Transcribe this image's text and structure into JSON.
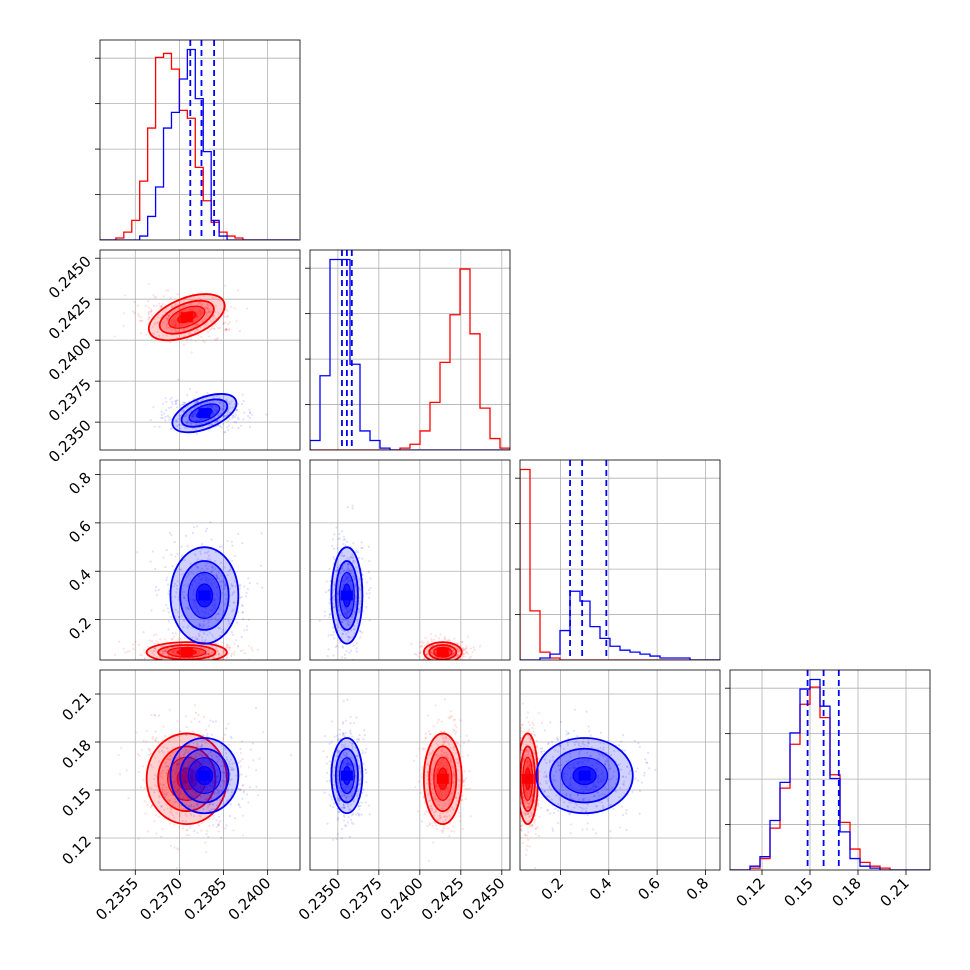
{
  "chart_data": {
    "type": "corner",
    "parameters": [
      "",
      "",
      "",
      ""
    ],
    "grid": true,
    "series": [
      {
        "name": "",
        "color": "#ff0000"
      },
      {
        "name": "",
        "color": "#0000ff"
      }
    ],
    "ranges": [
      [
        0.2343,
        0.2411
      ],
      [
        0.2333,
        0.2455
      ],
      [
        0.033,
        0.86
      ],
      [
        0.1,
        0.225
      ]
    ],
    "ticks": [
      [
        "0.2355",
        "0.2370",
        "0.2385",
        "0.2400"
      ],
      [
        "0.2350",
        "0.2375",
        "0.2400",
        "0.2425",
        "0.2450"
      ],
      [
        "0.2",
        "0.4",
        "0.6",
        "0.8"
      ],
      [
        "0.12",
        "0.15",
        "0.18",
        "0.21"
      ]
    ],
    "tick_values": [
      [
        0.2355,
        0.237,
        0.2385,
        0.24
      ],
      [
        0.235,
        0.2375,
        0.24,
        0.2425,
        0.245
      ],
      [
        0.2,
        0.4,
        0.6,
        0.8
      ],
      [
        0.12,
        0.15,
        0.18,
        0.21
      ]
    ],
    "histograms": [
      {
        "edges": [
          0.2343,
          0.23457,
          0.23484,
          0.23511,
          0.23538,
          0.23565,
          0.23592,
          0.23619,
          0.23646,
          0.23673,
          0.237,
          0.23727,
          0.23754,
          0.23781,
          0.23808,
          0.23835,
          0.23862,
          0.23889,
          0.23916,
          0.23943,
          0.2397,
          0.23997,
          0.24024,
          0.24051,
          0.24078,
          0.24105
        ],
        "red": [
          0,
          0,
          1,
          4,
          10,
          30,
          57,
          93,
          95,
          87,
          66,
          62,
          37,
          20,
          9,
          4,
          2,
          1,
          0,
          0,
          0,
          0,
          0,
          0,
          0
        ],
        "blue": [
          0,
          0,
          0,
          0,
          0,
          2,
          12,
          27,
          57,
          65,
          82,
          97,
          72,
          45,
          10,
          2,
          0,
          0,
          0,
          0,
          0,
          0,
          0,
          0,
          0
        ],
        "quantiles": [
          0.23737,
          0.23775,
          0.23818
        ]
      },
      {
        "edges": [
          0.2333,
          0.23391,
          0.23452,
          0.23513,
          0.23574,
          0.23635,
          0.23696,
          0.23757,
          0.23818,
          0.23879,
          0.2394,
          0.24001,
          0.24062,
          0.24123,
          0.24184,
          0.24245,
          0.24306,
          0.24367,
          0.24428,
          0.24489,
          0.2455
        ],
        "red": [
          0,
          0,
          0,
          0,
          0,
          0,
          0,
          0,
          0,
          1,
          3,
          10,
          25,
          46,
          71,
          95,
          61,
          22,
          6,
          1
        ],
        "blue": [
          5,
          39,
          100,
          100,
          45,
          10,
          5,
          1,
          0,
          0,
          0,
          0,
          0,
          0,
          0,
          0,
          0,
          0,
          0,
          0
        ],
        "quantiles": [
          0.23525,
          0.23555,
          0.23585
        ]
      },
      {
        "edges": [
          0.033,
          0.07435,
          0.1157,
          0.15705,
          0.1984,
          0.23975,
          0.2811,
          0.32245,
          0.3638,
          0.40515,
          0.4465,
          0.48785,
          0.5292,
          0.57055,
          0.6119,
          0.65325,
          0.6946,
          0.73595,
          0.7773,
          0.81865,
          0.86
        ],
        "red": [
          97,
          25,
          4,
          1,
          0,
          0,
          0,
          0,
          0,
          0,
          0,
          0,
          0,
          0,
          0,
          0,
          0,
          0,
          0,
          0
        ],
        "blue": [
          0,
          0,
          1,
          3,
          15,
          35,
          30,
          17,
          11,
          7,
          5,
          4,
          3,
          2,
          1,
          1,
          1,
          0,
          0,
          0
        ],
        "quantiles": [
          0.24,
          0.29,
          0.39
        ]
      },
      {
        "edges": [
          0.1,
          0.10625,
          0.1125,
          0.11875,
          0.125,
          0.13125,
          0.1375,
          0.14375,
          0.15,
          0.15625,
          0.1625,
          0.16875,
          0.175,
          0.18125,
          0.1875,
          0.19375,
          0.2,
          0.20625,
          0.2125,
          0.21875,
          0.225
        ],
        "red": [
          0,
          0,
          1,
          6,
          22,
          43,
          66,
          87,
          96,
          80,
          50,
          25,
          11,
          4,
          2,
          1,
          0,
          0,
          0,
          0
        ],
        "blue": [
          0,
          0,
          2,
          7,
          26,
          46,
          72,
          95,
          100,
          86,
          48,
          20,
          6,
          2,
          1,
          0,
          0,
          0,
          0,
          0
        ],
        "quantiles": [
          0.1485,
          0.1585,
          0.168
        ]
      }
    ],
    "distributions": {
      "red": {
        "mean": [
          0.23725,
          0.2414,
          0.065,
          0.157
        ],
        "sd": [
          0.00065,
          0.00055,
          0.02,
          0.0135
        ]
      },
      "blue": {
        "mean": [
          0.23785,
          0.23555,
          0.3,
          0.159
        ],
        "sd": [
          0.00055,
          0.00045,
          0.095,
          0.0112
        ]
      }
    }
  }
}
